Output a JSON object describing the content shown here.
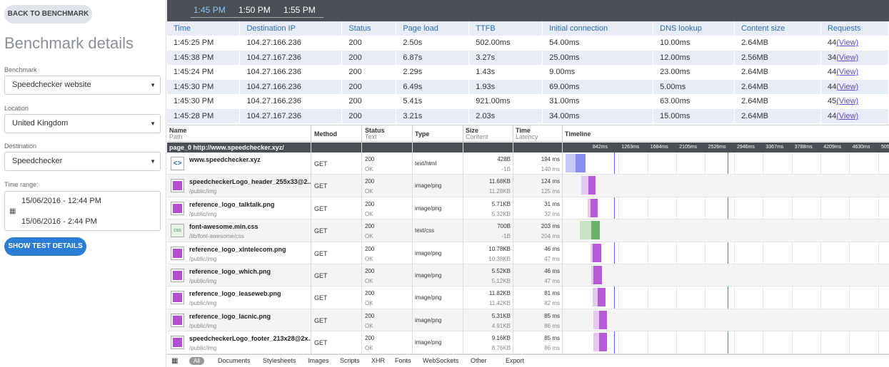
{
  "sidebar": {
    "back_label": "BACK TO BENCHMARK",
    "title": "Benchmark details",
    "benchmark_label": "Benchmark",
    "benchmark_value": "Speedchecker website",
    "location_label": "Location",
    "location_value": "United Kingdom",
    "destination_label": "Destination",
    "destination_value": "Speedchecker",
    "timerange_label": "Time range:",
    "time_from": "15/06/2016 - 12:44 PM",
    "time_to": "15/06/2016 - 2:44 PM",
    "show_label": "SHOW TEST DETAILS"
  },
  "tabs": [
    "1:45 PM",
    "1:50 PM",
    "1:55 PM"
  ],
  "summary": {
    "headers": [
      "Time",
      "Destination IP",
      "Status",
      "Page load",
      "TTFB",
      "Initial connection",
      "DNS lookup",
      "Content size",
      "Requests"
    ],
    "rows": [
      [
        "1:45:25 PM",
        "104.27.166.236",
        "200",
        "2.50s",
        "502.00ms",
        "54.00ms",
        "10.00ms",
        "2.64MB",
        "44"
      ],
      [
        "1:45:38 PM",
        "104.27.167.236",
        "200",
        "6.87s",
        "3.27s",
        "25.00ms",
        "12.00ms",
        "2.56MB",
        "34"
      ],
      [
        "1:45:24 PM",
        "104.27.166.236",
        "200",
        "2.29s",
        "1.43s",
        "9.00ms",
        "23.00ms",
        "2.64MB",
        "44"
      ],
      [
        "1:45:30 PM",
        "104.27.166.236",
        "200",
        "6.49s",
        "1.93s",
        "69.00ms",
        "5.00ms",
        "2.64MB",
        "44"
      ],
      [
        "1:45:30 PM",
        "104.27.166.236",
        "200",
        "5.41s",
        "921.00ms",
        "31.00ms",
        "63.00ms",
        "2.64MB",
        "45"
      ],
      [
        "1:45:28 PM",
        "104.27.167.236",
        "200",
        "3.21s",
        "2.03s",
        "34.00ms",
        "15.00ms",
        "2.64MB",
        "44"
      ]
    ],
    "view_label": "(View)"
  },
  "waterfall": {
    "headers": {
      "name": "Name",
      "name_sub": "Path",
      "method": "Method",
      "status": "Status",
      "status_sub": "Text",
      "type": "Type",
      "size": "Size",
      "size_sub": "Content",
      "time": "Time",
      "time_sub": "Latency",
      "timeline": "Timeline"
    },
    "group": "page_0 http://www.speedchecker.xyz/",
    "ticks": [
      "842ms",
      "1263ms",
      "1684ms",
      "2105ms",
      "2526ms",
      "2946ms",
      "3367ms",
      "3788ms",
      "4209ms",
      "4630ms",
      "5051ms"
    ],
    "rows": [
      {
        "name": "www.speedchecker.xyz",
        "path": "",
        "method": "GET",
        "status": "200",
        "text": "OK",
        "type": "text/html",
        "size": "428B",
        "content": "-1B",
        "time": "194 ms",
        "latency": "140 ms",
        "icon": "html-icon",
        "color": "#8b8cf0",
        "light": "#c8c9f7"
      },
      {
        "name": "speedcheckerLogo_header_255x33@2...",
        "path": "/public/img",
        "method": "GET",
        "status": "200",
        "text": "OK",
        "type": "image/png",
        "size": "11.68KB",
        "content": "11.28KB",
        "time": "124 ms",
        "latency": "125 ms",
        "icon": "image-icon",
        "color": "#b65ad8",
        "light": "#e4c8f2"
      },
      {
        "name": "reference_logo_talktalk.png",
        "path": "/public/img",
        "method": "GET",
        "status": "200",
        "text": "OK",
        "type": "image/png",
        "size": "5.71KB",
        "content": "5.32KB",
        "time": "31 ms",
        "latency": "32 ms",
        "icon": "image-icon",
        "color": "#b65ad8",
        "light": "#e4c8f2"
      },
      {
        "name": "font-awesome.min.css",
        "path": "/lib/font-awesome/css",
        "method": "GET",
        "status": "200",
        "text": "OK",
        "type": "text/css",
        "size": "700B",
        "content": "-1B",
        "time": "203 ms",
        "latency": "204 ms",
        "icon": "css-icon",
        "color": "#6ab26a",
        "light": "#c6e3c6"
      },
      {
        "name": "reference_logo_xlntelecom.png",
        "path": "/public/img",
        "method": "GET",
        "status": "200",
        "text": "OK",
        "type": "image/png",
        "size": "10.78KB",
        "content": "10.38KB",
        "time": "46 ms",
        "latency": "47 ms",
        "icon": "image-icon",
        "color": "#b65ad8",
        "light": "#e4c8f2"
      },
      {
        "name": "reference_logo_which.png",
        "path": "/public/img",
        "method": "GET",
        "status": "200",
        "text": "OK",
        "type": "image/png",
        "size": "5.52KB",
        "content": "5.12KB",
        "time": "46 ms",
        "latency": "47 ms",
        "icon": "image-icon",
        "color": "#b65ad8",
        "light": "#e4c8f2"
      },
      {
        "name": "reference_logo_leaseweb.png",
        "path": "/public/img",
        "method": "GET",
        "status": "200",
        "text": "OK",
        "type": "image/png",
        "size": "11.82KB",
        "content": "11.42KB",
        "time": "81 ms",
        "latency": "82 ms",
        "icon": "image-icon",
        "color": "#b65ad8",
        "light": "#e4c8f2"
      },
      {
        "name": "reference_logo_lacnic.png",
        "path": "/public/img",
        "method": "GET",
        "status": "200",
        "text": "OK",
        "type": "image/png",
        "size": "5.31KB",
        "content": "4.91KB",
        "time": "85 ms",
        "latency": "86 ms",
        "icon": "image-icon",
        "color": "#b65ad8",
        "light": "#e4c8f2"
      },
      {
        "name": "speedcheckerLogo_footer_213x28@2x...",
        "path": "/public/img",
        "method": "GET",
        "status": "200",
        "text": "OK",
        "type": "image/png",
        "size": "9.16KB",
        "content": "8.76KB",
        "time": "85 ms",
        "latency": "86 ms",
        "icon": "image-icon",
        "color": "#b65ad8",
        "light": "#e4c8f2"
      }
    ]
  },
  "filters": [
    "All",
    "Documents",
    "Stylesheets",
    "Images",
    "Scripts",
    "XHR",
    "Fonts",
    "WebSockets",
    "Other",
    "Export"
  ]
}
